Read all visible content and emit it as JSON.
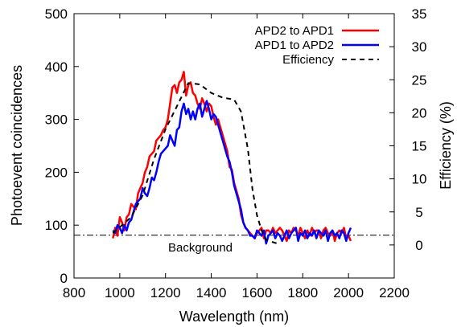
{
  "chart_data": {
    "type": "line",
    "xlabel": "Wavelength (nm)",
    "ylabel": "Photoevent coincidences",
    "y2label": "Efficiency (%)",
    "xlim": [
      800,
      2200
    ],
    "ylim": [
      0,
      500
    ],
    "y2lim": [
      -5,
      35
    ],
    "x_ticks": [
      800,
      1000,
      1200,
      1400,
      1600,
      1800,
      2000,
      2200
    ],
    "y_ticks": [
      0,
      100,
      200,
      300,
      400,
      500
    ],
    "y2_ticks": [
      0,
      5,
      10,
      15,
      20,
      25,
      30,
      35
    ],
    "grid": false,
    "legend_position": "top-right",
    "background_level": 81,
    "annotation": "Background",
    "series": [
      {
        "name": "APD2 to APD1",
        "axis": "left",
        "color": "#ff0000",
        "style": "solid",
        "x": [
          970,
          980,
          990,
          1000,
          1010,
          1020,
          1030,
          1040,
          1050,
          1060,
          1070,
          1080,
          1090,
          1100,
          1110,
          1120,
          1130,
          1140,
          1150,
          1160,
          1170,
          1180,
          1190,
          1200,
          1210,
          1220,
          1230,
          1240,
          1250,
          1260,
          1270,
          1280,
          1290,
          1300,
          1310,
          1320,
          1330,
          1340,
          1350,
          1360,
          1370,
          1380,
          1390,
          1400,
          1410,
          1420,
          1430,
          1440,
          1450,
          1460,
          1470,
          1480,
          1490,
          1500,
          1510,
          1520,
          1530,
          1540,
          1550,
          1560,
          1570,
          1580,
          1590,
          1600,
          1610,
          1620,
          1630,
          1640,
          1650,
          1660,
          1670,
          1680,
          1690,
          1700,
          1710,
          1720,
          1730,
          1740,
          1750,
          1760,
          1770,
          1780,
          1790,
          1800,
          1810,
          1820,
          1830,
          1840,
          1850,
          1860,
          1870,
          1880,
          1890,
          1900,
          1910,
          1920,
          1930,
          1940,
          1950,
          1960,
          1970,
          1980,
          1990,
          2000,
          2010
        ],
        "y": [
          75,
          95,
          80,
          115,
          105,
          90,
          115,
          120,
          140,
          135,
          130,
          160,
          170,
          180,
          200,
          210,
          230,
          235,
          240,
          260,
          265,
          270,
          280,
          285,
          300,
          330,
          360,
          365,
          350,
          370,
          375,
          390,
          345,
          365,
          370,
          350,
          345,
          330,
          320,
          340,
          330,
          315,
          330,
          325,
          305,
          290,
          300,
          285,
          270,
          255,
          240,
          210,
          205,
          180,
          165,
          150,
          120,
          105,
          95,
          90,
          85,
          80,
          75,
          85,
          90,
          95,
          75,
          90,
          90,
          85,
          95,
          85,
          90,
          95,
          90,
          80,
          70,
          90,
          85,
          95,
          90,
          80,
          95,
          85,
          75,
          90,
          80,
          95,
          85,
          90,
          90,
          75,
          90,
          95,
          85,
          80,
          90,
          70,
          85,
          90,
          85,
          95,
          75,
          80,
          70
        ]
      },
      {
        "name": "APD1 to APD2",
        "axis": "left",
        "color": "#0000ff",
        "style": "solid",
        "x": [
          970,
          980,
          990,
          1000,
          1010,
          1020,
          1030,
          1040,
          1050,
          1060,
          1070,
          1080,
          1090,
          1100,
          1110,
          1120,
          1130,
          1140,
          1150,
          1160,
          1170,
          1180,
          1190,
          1200,
          1210,
          1220,
          1230,
          1240,
          1250,
          1260,
          1270,
          1280,
          1290,
          1300,
          1310,
          1320,
          1330,
          1340,
          1350,
          1360,
          1370,
          1380,
          1390,
          1400,
          1410,
          1420,
          1430,
          1440,
          1450,
          1460,
          1470,
          1480,
          1490,
          1500,
          1510,
          1520,
          1530,
          1540,
          1550,
          1560,
          1570,
          1580,
          1590,
          1600,
          1610,
          1620,
          1630,
          1640,
          1650,
          1660,
          1670,
          1680,
          1690,
          1700,
          1710,
          1720,
          1730,
          1740,
          1750,
          1760,
          1770,
          1780,
          1790,
          1800,
          1810,
          1820,
          1830,
          1840,
          1850,
          1860,
          1870,
          1880,
          1890,
          1900,
          1910,
          1920,
          1930,
          1940,
          1950,
          1960,
          1970,
          1980,
          1990,
          2000,
          2010
        ],
        "y": [
          90,
          85,
          100,
          95,
          85,
          100,
          90,
          105,
          110,
          125,
          140,
          145,
          150,
          170,
          160,
          155,
          170,
          190,
          185,
          200,
          220,
          235,
          240,
          245,
          250,
          270,
          260,
          250,
          280,
          285,
          315,
          330,
          310,
          320,
          300,
          315,
          300,
          320,
          330,
          305,
          320,
          335,
          320,
          300,
          310,
          305,
          290,
          275,
          260,
          245,
          230,
          220,
          200,
          175,
          160,
          145,
          130,
          105,
          95,
          90,
          80,
          80,
          75,
          90,
          85,
          80,
          90,
          65,
          80,
          85,
          90,
          75,
          85,
          80,
          70,
          80,
          90,
          75,
          85,
          90,
          95,
          70,
          85,
          80,
          90,
          75,
          85,
          80,
          90,
          75,
          90,
          85,
          80,
          90,
          70,
          85,
          90,
          80,
          85,
          75,
          90,
          85,
          70,
          85,
          95
        ]
      },
      {
        "name": "Efficiency",
        "axis": "right",
        "color": "#000000",
        "style": "dashed",
        "x": [
          970,
          1050,
          1100,
          1150,
          1200,
          1250,
          1300,
          1350,
          1400,
          1450,
          1500,
          1530,
          1560,
          1580,
          1600,
          1620,
          1640,
          1680,
          1700
        ],
        "y": [
          1.8,
          4.2,
          7.5,
          13.0,
          17.5,
          21.0,
          24.5,
          24.3,
          23.0,
          22.3,
          22.0,
          20.2,
          14.5,
          8.5,
          4.5,
          2.2,
          0.8,
          0.3,
          0.2
        ]
      }
    ]
  }
}
